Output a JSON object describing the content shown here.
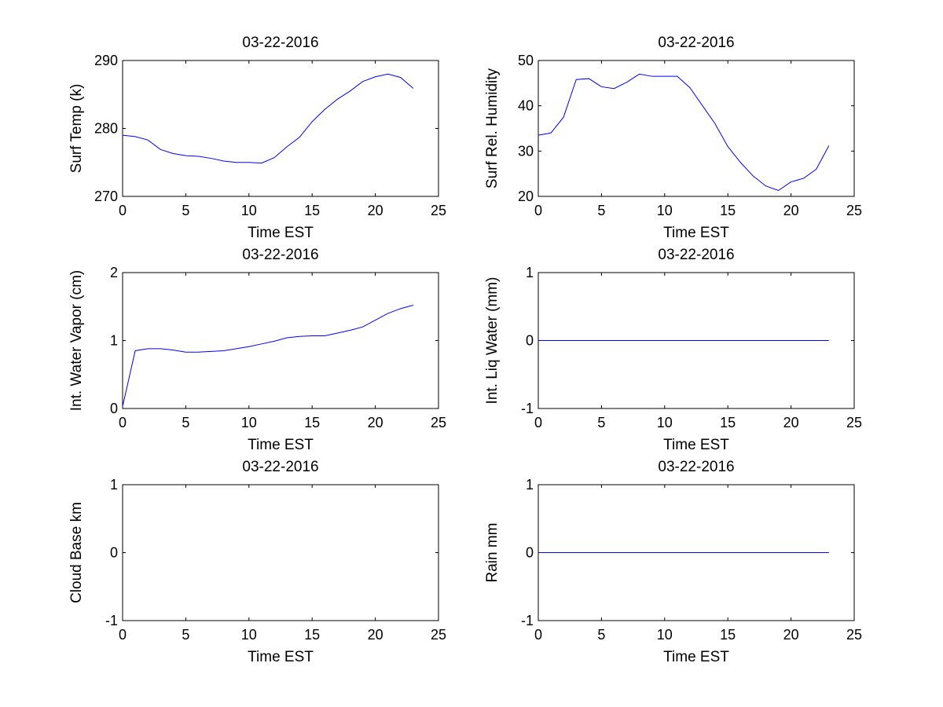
{
  "colors": {
    "line": "#0000ff",
    "axes": "#000000",
    "background": "#ffffff"
  },
  "chart_data": [
    {
      "type": "line",
      "title": "03-22-2016",
      "xlabel": "Time EST",
      "ylabel": "Surf Temp (k)",
      "xlim": [
        0,
        25
      ],
      "ylim": [
        270,
        290
      ],
      "xticks": [
        0,
        5,
        10,
        15,
        20,
        25
      ],
      "yticks": [
        270,
        280,
        290
      ],
      "grid": false,
      "series": [
        {
          "x": [
            0,
            1,
            2,
            3,
            4,
            5,
            6,
            7,
            8,
            9,
            10,
            11,
            12,
            13,
            14,
            15,
            16,
            17,
            18,
            19,
            20,
            21,
            22,
            23
          ],
          "y": [
            279.0,
            278.8,
            278.3,
            276.9,
            276.3,
            276.0,
            275.9,
            275.6,
            275.2,
            275.0,
            275.0,
            274.9,
            275.7,
            277.3,
            278.7,
            281.0,
            282.8,
            284.3,
            285.5,
            286.9,
            287.6,
            288.0,
            287.5,
            285.9
          ]
        }
      ]
    },
    {
      "type": "line",
      "title": "03-22-2016",
      "xlabel": "Time EST",
      "ylabel": "Surf Rel. Humidity",
      "xlim": [
        0,
        25
      ],
      "ylim": [
        20,
        50
      ],
      "xticks": [
        0,
        5,
        10,
        15,
        20,
        25
      ],
      "yticks": [
        20,
        30,
        40,
        50
      ],
      "grid": false,
      "series": [
        {
          "x": [
            0,
            1,
            2,
            3,
            4,
            5,
            6,
            7,
            8,
            9,
            10,
            11,
            12,
            13,
            14,
            15,
            16,
            17,
            18,
            19,
            20,
            21,
            22,
            23
          ],
          "y": [
            33.5,
            34.0,
            37.5,
            45.8,
            46.0,
            44.2,
            43.8,
            45.2,
            47.0,
            46.5,
            46.5,
            46.5,
            44.0,
            40.0,
            36.0,
            31.0,
            27.5,
            24.5,
            22.3,
            21.3,
            23.2,
            24.0,
            26.0,
            31.2
          ]
        }
      ]
    },
    {
      "type": "line",
      "title": "03-22-2016",
      "xlabel": "Time EST",
      "ylabel": "Int. Water Vapor (cm)",
      "xlim": [
        0,
        25
      ],
      "ylim": [
        0,
        2
      ],
      "xticks": [
        0,
        5,
        10,
        15,
        20,
        25
      ],
      "yticks": [
        0,
        1,
        2
      ],
      "grid": false,
      "series": [
        {
          "x": [
            0,
            1,
            2,
            3,
            4,
            5,
            6,
            7,
            8,
            9,
            10,
            11,
            12,
            13,
            14,
            15,
            16,
            17,
            18,
            19,
            20,
            21,
            22,
            23
          ],
          "y": [
            0.03,
            0.85,
            0.88,
            0.88,
            0.86,
            0.83,
            0.83,
            0.84,
            0.85,
            0.88,
            0.91,
            0.95,
            0.99,
            1.04,
            1.06,
            1.07,
            1.07,
            1.11,
            1.15,
            1.2,
            1.3,
            1.4,
            1.47,
            1.52
          ]
        }
      ]
    },
    {
      "type": "line",
      "title": "03-22-2016",
      "xlabel": "Time EST",
      "ylabel": "Int. Liq Water (mm)",
      "xlim": [
        0,
        25
      ],
      "ylim": [
        -1,
        1
      ],
      "xticks": [
        0,
        5,
        10,
        15,
        20,
        25
      ],
      "yticks": [
        -1,
        0,
        1
      ],
      "grid": false,
      "series": [
        {
          "x": [
            0,
            23
          ],
          "y": [
            0,
            0
          ]
        }
      ]
    },
    {
      "type": "line",
      "title": "03-22-2016",
      "xlabel": "Time EST",
      "ylabel": "Cloud Base km",
      "xlim": [
        0,
        25
      ],
      "ylim": [
        -1,
        1
      ],
      "xticks": [
        0,
        5,
        10,
        15,
        20,
        25
      ],
      "yticks": [
        -1,
        0,
        1
      ],
      "grid": false,
      "series": []
    },
    {
      "type": "line",
      "title": "03-22-2016",
      "xlabel": "Time EST",
      "ylabel": "Rain mm",
      "xlim": [
        0,
        25
      ],
      "ylim": [
        -1,
        1
      ],
      "xticks": [
        0,
        5,
        10,
        15,
        20,
        25
      ],
      "yticks": [
        -1,
        0,
        1
      ],
      "grid": false,
      "series": [
        {
          "x": [
            0,
            23
          ],
          "y": [
            0,
            0
          ]
        }
      ]
    }
  ]
}
